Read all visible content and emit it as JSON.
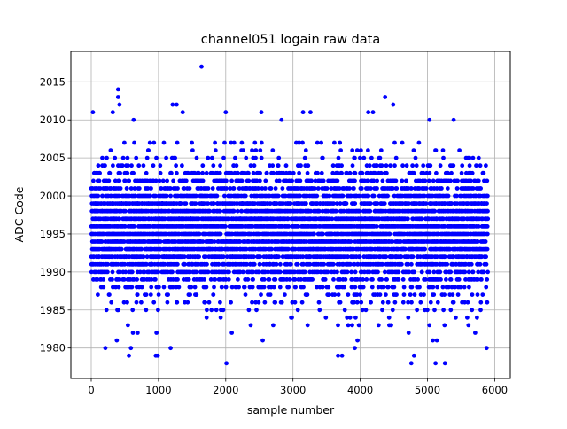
{
  "chart_data": {
    "type": "scatter",
    "title": "channel051 logain raw data",
    "xlabel": "sample number",
    "ylabel": "ADC Code",
    "xlim": [
      -303,
      6232
    ],
    "ylim": [
      1976,
      2019
    ],
    "xticks": [
      0,
      1000,
      2000,
      3000,
      4000,
      5000,
      6000
    ],
    "yticks": [
      1980,
      1985,
      1990,
      1995,
      2000,
      2005,
      2010,
      2015
    ],
    "grid": true,
    "color": "#0000ff",
    "series": [
      {
        "name": "channel051",
        "n_points": 5900,
        "x_start": 0,
        "x_step": 1,
        "mean": 1995.5,
        "std": 4.2,
        "core_range": [
          1983,
          2007
        ],
        "outliers": [
          [
            1640,
            2017
          ],
          [
            400,
            2014
          ],
          [
            400,
            2013
          ],
          [
            420,
            2012
          ],
          [
            1210,
            2012
          ],
          [
            1270,
            2012
          ],
          [
            4370,
            2013
          ],
          [
            4490,
            2012
          ],
          [
            25,
            2011
          ],
          [
            320,
            2011
          ],
          [
            1360,
            2011
          ],
          [
            2000,
            2011
          ],
          [
            2530,
            2011
          ],
          [
            3150,
            2011
          ],
          [
            3260,
            2011
          ],
          [
            4120,
            2011
          ],
          [
            4190,
            2011
          ],
          [
            5390,
            2010
          ],
          [
            5030,
            2010
          ],
          [
            2830,
            2010
          ],
          [
            630,
            2010
          ],
          [
            2010,
            1978
          ],
          [
            5120,
            1978
          ],
          [
            5260,
            1978
          ],
          [
            4760,
            1978
          ],
          [
            990,
            1979
          ],
          [
            960,
            1979
          ],
          [
            560,
            1979
          ],
          [
            3670,
            1979
          ],
          [
            3730,
            1979
          ],
          [
            4800,
            1979
          ],
          [
            1180,
            1980
          ],
          [
            210,
            1980
          ],
          [
            5880,
            1980
          ],
          [
            3920,
            1980
          ],
          [
            3960,
            1981
          ],
          [
            590,
            1980
          ],
          [
            380,
            1981
          ],
          [
            2550,
            1981
          ],
          [
            5080,
            1981
          ],
          [
            5140,
            1981
          ],
          [
            4720,
            1982
          ],
          [
            2090,
            1982
          ],
          [
            970,
            1982
          ],
          [
            5710,
            1982
          ],
          [
            620,
            1982
          ],
          [
            690,
            1982
          ]
        ]
      }
    ]
  }
}
